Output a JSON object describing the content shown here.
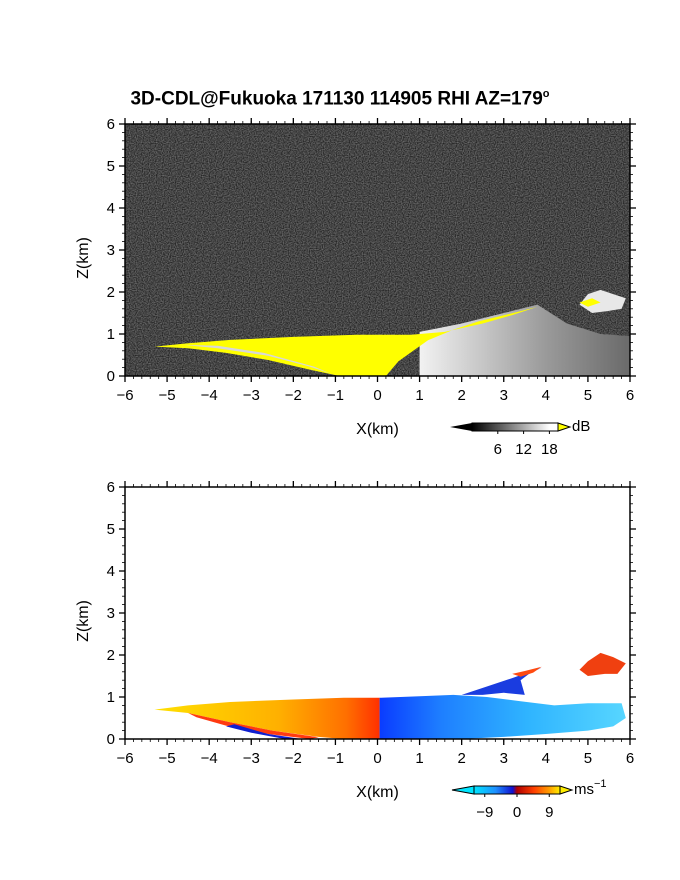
{
  "title": "3D-CDL@Fukuoka 171130 114905 RHI AZ=179",
  "title_superscript": "o",
  "chart_data": [
    {
      "type": "heatmap",
      "panel": "reflectivity",
      "xlabel": "X(km)",
      "ylabel": "Z(km)",
      "xlim": [
        -6,
        6
      ],
      "ylim": [
        0,
        6
      ],
      "xticks": [
        "-6",
        "-5",
        "-4",
        "-3",
        "-2",
        "-1",
        "0",
        "1",
        "2",
        "3",
        "4",
        "5",
        "6"
      ],
      "yticks": [
        "0",
        "1",
        "2",
        "3",
        "4",
        "5",
        "6"
      ],
      "background": "noise",
      "colorbar": {
        "unit": "dB",
        "ticks": [
          "6",
          "12",
          "18"
        ],
        "range": [
          0,
          20
        ],
        "over_color": "#ffff00"
      },
      "echo_top_profile_km": {
        "x": [
          -5.3,
          -4,
          -3,
          -2,
          -1,
          0,
          1,
          2,
          3,
          3.8,
          4.5,
          5.3,
          6
        ],
        "z": [
          0.75,
          0.88,
          0.93,
          0.96,
          0.98,
          0.98,
          1.05,
          1.25,
          1.5,
          1.7,
          1.25,
          1.0,
          0.95
        ]
      },
      "features": [
        {
          "name": "saturated_core",
          "x": [
            -5.3,
            1.8
          ],
          "z": [
            0,
            1.0
          ]
        },
        {
          "name": "upper_patch",
          "x": [
            4.8,
            5.9
          ],
          "z": [
            1.4,
            2.1
          ]
        }
      ]
    },
    {
      "type": "heatmap",
      "panel": "doppler_velocity",
      "xlabel": "X(km)",
      "ylabel": "Z(km)",
      "xlim": [
        -6,
        6
      ],
      "ylim": [
        0,
        6
      ],
      "xticks": [
        "-6",
        "-5",
        "-4",
        "-3",
        "-2",
        "-1",
        "0",
        "1",
        "2",
        "3",
        "4",
        "5",
        "6"
      ],
      "yticks": [
        "0",
        "1",
        "2",
        "3",
        "4",
        "5",
        "6"
      ],
      "colorbar": {
        "unit": "ms",
        "unit_superscript": "−1",
        "ticks": [
          "−9",
          "0",
          "9"
        ],
        "range": [
          -12,
          12
        ]
      },
      "velocity_sign": {
        "x_lt_0": "positive (toward 9)",
        "x_gt_0": "negative (toward -9)"
      },
      "features": [
        {
          "name": "main_echo",
          "x": [
            -5.3,
            6
          ],
          "z": [
            0,
            1.0
          ],
          "velocity_range": [
            -9,
            9
          ]
        },
        {
          "name": "upper_layer",
          "x": [
            2.0,
            3.9
          ],
          "z": [
            1.0,
            1.7
          ],
          "velocity_range": [
            -9,
            6
          ]
        },
        {
          "name": "upper_patch",
          "x": [
            4.8,
            5.9
          ],
          "z": [
            1.6,
            2.1
          ],
          "velocity_range": [
            5,
            8
          ]
        }
      ]
    }
  ]
}
